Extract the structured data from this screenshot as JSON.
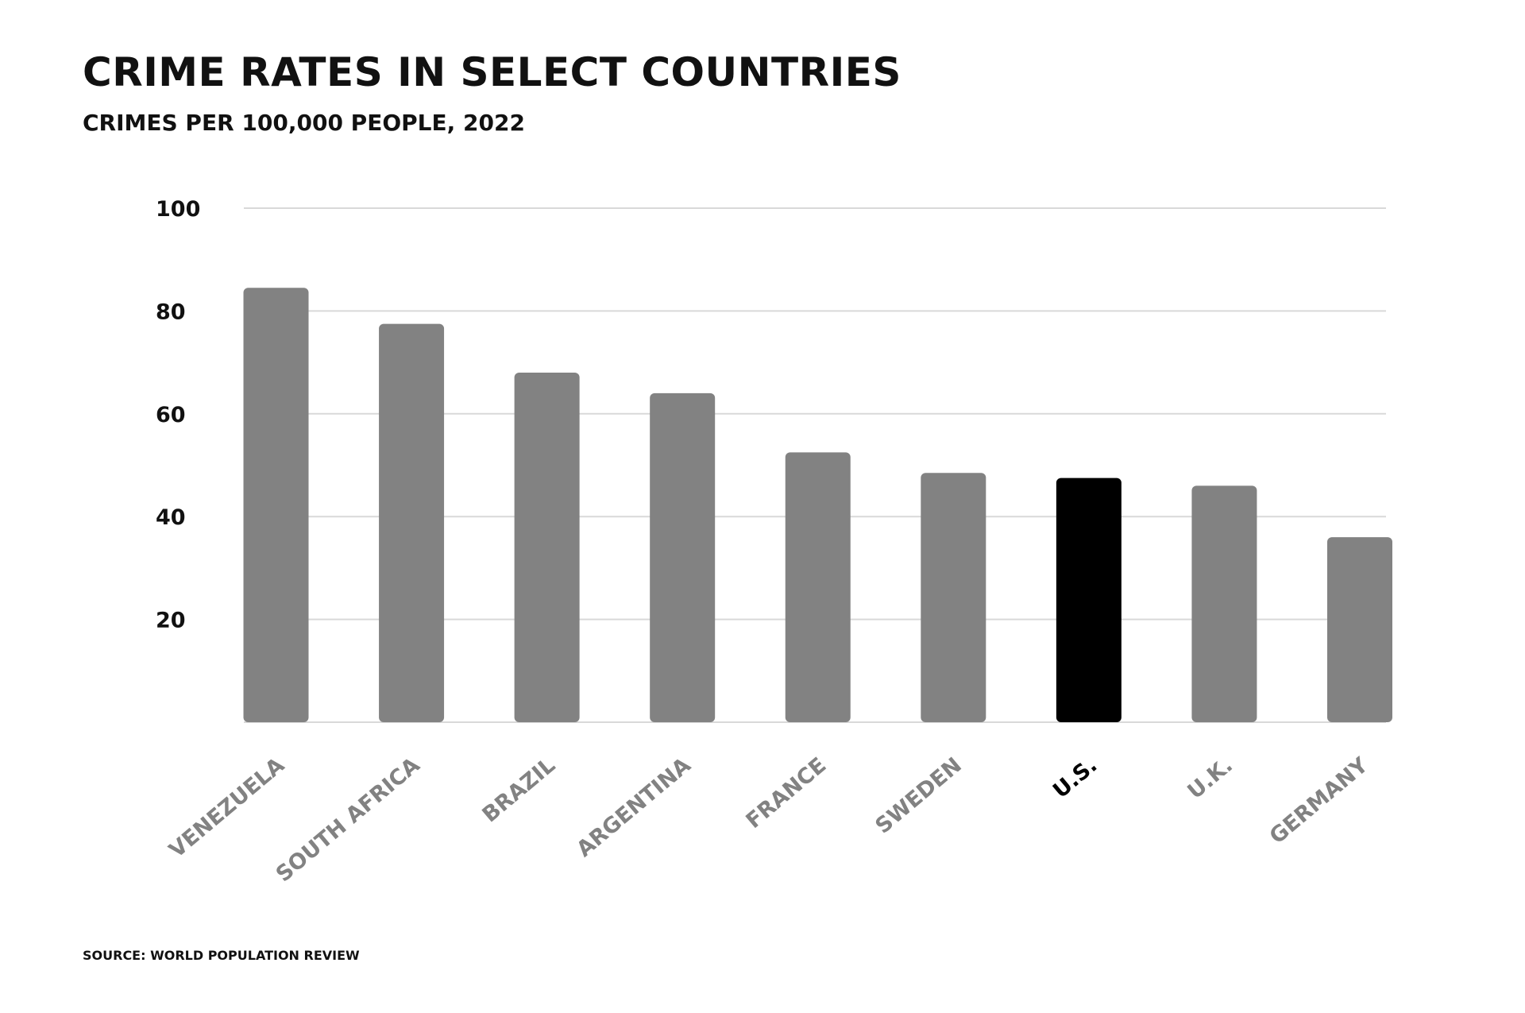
{
  "chart_data": {
    "type": "bar",
    "title": "CRIME RATES IN SELECT COUNTRIES",
    "subtitle": "CRIMES PER 100,000 PEOPLE, 2022",
    "source": "SOURCE: WORLD POPULATION REVIEW",
    "xlabel": "",
    "ylabel": "",
    "categories": [
      "VENEZUELA",
      "SOUTH AFRICA",
      "BRAZIL",
      "ARGENTINA",
      "FRANCE",
      "SWEDEN",
      "U.S.",
      "U.K.",
      "GERMANY"
    ],
    "values": [
      84.5,
      77.5,
      68,
      64,
      52.5,
      48.5,
      47.5,
      46,
      36
    ],
    "highlight": "U.S.",
    "yticks": [
      20,
      40,
      60,
      80,
      100
    ],
    "ylim": [
      0,
      100
    ],
    "grid": true,
    "legend": "none",
    "colors": {
      "bar": "#828282",
      "highlight": "#000000",
      "grid": "#d9d9d9",
      "label": "#828282",
      "highlight_label": "#000000"
    }
  }
}
